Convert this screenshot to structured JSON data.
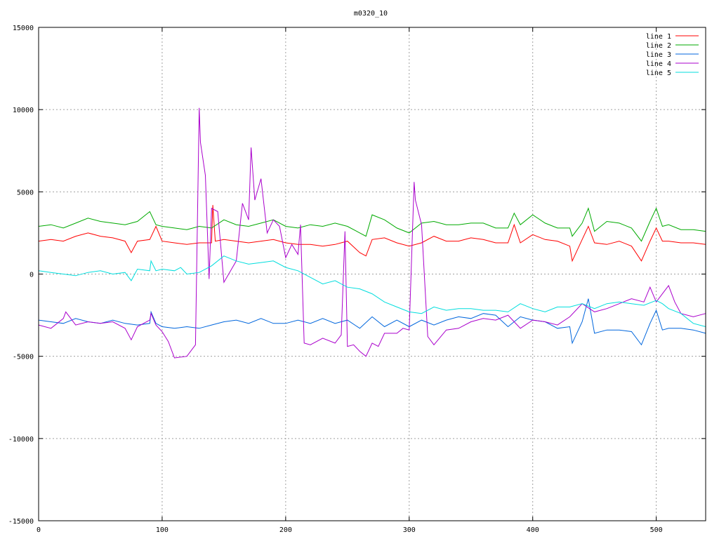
{
  "chart_data": {
    "type": "line",
    "title": "m0320_10",
    "xlabel": "",
    "ylabel": "",
    "xlim": [
      0,
      540
    ],
    "ylim": [
      -15000,
      15000
    ],
    "x_ticks": [
      "0",
      "100",
      "200",
      "300",
      "400",
      "500"
    ],
    "y_ticks": [
      "15000",
      "10000",
      "5000",
      "0",
      "-5000",
      "-10000",
      "-15000"
    ],
    "grid": true,
    "legend_position": "top-right",
    "series": [
      {
        "name": "line 1",
        "color": "#ff0000",
        "x": [
          0,
          10,
          20,
          30,
          40,
          50,
          60,
          70,
          75,
          80,
          90,
          95,
          100,
          110,
          120,
          130,
          140,
          141,
          143,
          150,
          160,
          170,
          180,
          190,
          200,
          210,
          220,
          230,
          240,
          250,
          260,
          265,
          270,
          280,
          290,
          300,
          310,
          320,
          330,
          340,
          350,
          360,
          370,
          380,
          385,
          390,
          400,
          410,
          420,
          430,
          432,
          440,
          445,
          450,
          460,
          470,
          480,
          488,
          495,
          500,
          505,
          510,
          520,
          530,
          540
        ],
        "y": [
          2000,
          2100,
          2000,
          2300,
          2500,
          2300,
          2200,
          2000,
          1300,
          2000,
          2100,
          2900,
          2000,
          1900,
          1800,
          1900,
          1900,
          4200,
          2000,
          2100,
          2000,
          1900,
          2000,
          2100,
          1900,
          1800,
          1800,
          1700,
          1800,
          2000,
          1300,
          1100,
          2100,
          2200,
          1900,
          1700,
          1900,
          2300,
          2000,
          2000,
          2200,
          2100,
          1900,
          1900,
          3000,
          1900,
          2400,
          2100,
          2000,
          1700,
          800,
          2100,
          2900,
          1900,
          1800,
          2000,
          1700,
          800,
          2000,
          2800,
          2000,
          2000,
          1900,
          1900,
          1800
        ]
      },
      {
        "name": "line 2",
        "color": "#00aa00",
        "x": [
          0,
          10,
          20,
          30,
          40,
          50,
          60,
          70,
          80,
          90,
          95,
          100,
          110,
          120,
          130,
          140,
          150,
          160,
          170,
          180,
          190,
          200,
          210,
          220,
          230,
          240,
          250,
          260,
          265,
          270,
          280,
          290,
          300,
          310,
          320,
          330,
          340,
          350,
          360,
          370,
          380,
          385,
          390,
          400,
          410,
          420,
          430,
          432,
          440,
          445,
          450,
          460,
          470,
          480,
          488,
          495,
          500,
          505,
          510,
          520,
          530,
          540
        ],
        "y": [
          2900,
          3000,
          2800,
          3100,
          3400,
          3200,
          3100,
          3000,
          3200,
          3800,
          3000,
          2900,
          2800,
          2700,
          2900,
          2800,
          3300,
          3000,
          2900,
          3100,
          3300,
          2900,
          2800,
          3000,
          2900,
          3100,
          2900,
          2500,
          2300,
          3600,
          3300,
          2800,
          2500,
          3100,
          3200,
          3000,
          3000,
          3100,
          3100,
          2800,
          2800,
          3700,
          3000,
          3600,
          3100,
          2800,
          2800,
          2300,
          3100,
          4000,
          2600,
          3200,
          3100,
          2800,
          2000,
          3200,
          4000,
          2900,
          3000,
          2700,
          2700,
          2600
        ]
      },
      {
        "name": "line 3",
        "color": "#0066dd",
        "x": [
          0,
          10,
          20,
          30,
          40,
          50,
          60,
          70,
          80,
          90,
          91,
          95,
          100,
          110,
          120,
          130,
          140,
          150,
          160,
          170,
          180,
          190,
          200,
          210,
          220,
          230,
          240,
          250,
          260,
          270,
          280,
          290,
          300,
          310,
          320,
          330,
          340,
          350,
          360,
          370,
          380,
          390,
          400,
          410,
          420,
          430,
          432,
          440,
          445,
          450,
          460,
          470,
          480,
          488,
          495,
          500,
          505,
          510,
          520,
          530,
          540
        ],
        "y": [
          -2800,
          -2900,
          -3000,
          -2700,
          -2900,
          -3000,
          -2800,
          -3000,
          -3100,
          -3000,
          -2300,
          -3000,
          -3200,
          -3300,
          -3200,
          -3300,
          -3100,
          -2900,
          -2800,
          -3000,
          -2700,
          -3000,
          -3000,
          -2800,
          -3000,
          -2700,
          -3000,
          -2800,
          -3300,
          -2600,
          -3200,
          -2800,
          -3200,
          -2800,
          -3100,
          -2800,
          -2600,
          -2700,
          -2400,
          -2500,
          -3200,
          -2600,
          -2800,
          -2900,
          -3300,
          -3200,
          -4200,
          -2900,
          -1500,
          -3600,
          -3400,
          -3400,
          -3500,
          -4300,
          -3000,
          -2200,
          -3400,
          -3300,
          -3300,
          -3400,
          -3600
        ]
      },
      {
        "name": "line 4",
        "color": "#aa00cc",
        "x": [
          0,
          10,
          20,
          22,
          30,
          40,
          50,
          60,
          70,
          75,
          80,
          90,
          91,
          95,
          100,
          105,
          110,
          120,
          127,
          130,
          131,
          135,
          138,
          140,
          145,
          150,
          160,
          165,
          170,
          172,
          175,
          180,
          185,
          190,
          195,
          200,
          205,
          210,
          212,
          215,
          220,
          230,
          240,
          245,
          248,
          250,
          255,
          260,
          265,
          270,
          275,
          280,
          290,
          295,
          300,
          304,
          305,
          310,
          315,
          320,
          330,
          340,
          350,
          360,
          370,
          380,
          390,
          400,
          410,
          420,
          430,
          440,
          450,
          460,
          470,
          480,
          490,
          495,
          500,
          505,
          510,
          515,
          520,
          530,
          540
        ],
        "y": [
          -3100,
          -3300,
          -2700,
          -2300,
          -3100,
          -2900,
          -3000,
          -2900,
          -3300,
          -4000,
          -3200,
          -2800,
          -2400,
          -3100,
          -3500,
          -4100,
          -5100,
          -5000,
          -4300,
          10100,
          8000,
          6000,
          -300,
          4000,
          3800,
          -500,
          800,
          4300,
          3300,
          7700,
          4500,
          5800,
          2500,
          3300,
          2900,
          1000,
          1800,
          1200,
          3000,
          -4200,
          -4300,
          -3900,
          -4200,
          -3700,
          2600,
          -4400,
          -4300,
          -4700,
          -5000,
          -4200,
          -4400,
          -3600,
          -3600,
          -3300,
          -3400,
          5600,
          4500,
          3000,
          -3800,
          -4300,
          -3400,
          -3300,
          -2900,
          -2700,
          -2800,
          -2500,
          -3300,
          -2800,
          -2900,
          -3100,
          -2600,
          -1800,
          -2300,
          -2100,
          -1800,
          -1500,
          -1700,
          -800,
          -1700,
          -1200,
          -700,
          -1700,
          -2400,
          -2600,
          -2400
        ]
      },
      {
        "name": "line 5",
        "color": "#00dddd",
        "x": [
          0,
          10,
          20,
          30,
          40,
          50,
          60,
          70,
          75,
          80,
          90,
          91,
          95,
          100,
          110,
          115,
          120,
          130,
          140,
          150,
          160,
          170,
          180,
          190,
          200,
          210,
          220,
          230,
          240,
          250,
          260,
          270,
          280,
          290,
          300,
          310,
          320,
          330,
          340,
          350,
          360,
          370,
          380,
          390,
          400,
          410,
          420,
          430,
          440,
          450,
          460,
          470,
          480,
          490,
          500,
          505,
          510,
          520,
          530,
          540
        ],
        "y": [
          200,
          100,
          0,
          -100,
          100,
          200,
          0,
          100,
          -400,
          300,
          200,
          800,
          200,
          300,
          200,
          400,
          0,
          100,
          500,
          1100,
          800,
          600,
          700,
          800,
          400,
          200,
          -200,
          -600,
          -400,
          -800,
          -900,
          -1200,
          -1700,
          -2000,
          -2300,
          -2400,
          -2000,
          -2200,
          -2100,
          -2100,
          -2200,
          -2200,
          -2300,
          -1800,
          -2100,
          -2300,
          -2000,
          -2000,
          -1800,
          -2100,
          -1800,
          -1700,
          -1800,
          -1900,
          -1600,
          -1800,
          -2100,
          -2400,
          -3000,
          -3200
        ]
      }
    ]
  }
}
